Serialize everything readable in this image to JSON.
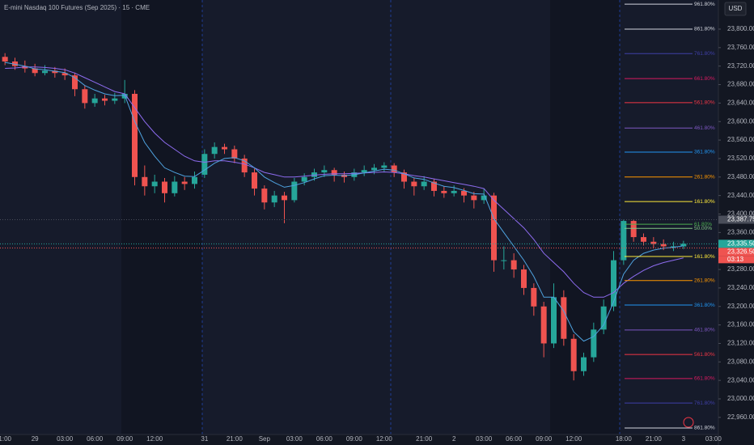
{
  "chart_data": {
    "type": "candlestick",
    "title": "E-mini Nasdaq 100 Futures (Sep 2025) · 15 · CME",
    "currency": "USD",
    "categories": [
      "1:00",
      null,
      null,
      "29",
      null,
      null,
      "03:00",
      null,
      null,
      "06:00",
      null,
      null,
      "09:00",
      null,
      null,
      "12:00",
      null,
      null,
      null,
      null,
      "31",
      null,
      null,
      "21:00",
      null,
      null,
      "Sep",
      null,
      null,
      "03:00",
      null,
      null,
      "06:00",
      null,
      null,
      "09:00",
      null,
      null,
      "12:00",
      null,
      null,
      null,
      "21:00",
      null,
      null,
      "2",
      null,
      null,
      "03:00",
      null,
      null,
      "06:00",
      null,
      null,
      "09:00",
      null,
      null,
      "12:00",
      null,
      null,
      null,
      null,
      "18:00",
      null,
      null,
      "21:00",
      null,
      null,
      "3",
      null,
      null,
      "03:00"
    ],
    "open": [
      23740,
      23730,
      23720,
      23715,
      23705,
      23710,
      23705,
      23700,
      23670,
      23640,
      23650,
      23645,
      23650,
      23660,
      23480,
      23460,
      23470,
      23445,
      23470,
      23465,
      23485,
      23530,
      23545,
      23540,
      23520,
      23490,
      23455,
      23425,
      23440,
      23430,
      23470,
      23480,
      23490,
      23495,
      23485,
      23480,
      23490,
      23495,
      23500,
      23505,
      23490,
      23470,
      23460,
      23470,
      23450,
      23445,
      23450,
      23440,
      23430,
      23440,
      23300,
      23300,
      23280,
      23240,
      23200,
      23120,
      23220,
      23130,
      23060,
      23090,
      23150,
      23200,
      23300,
      23385,
      23350,
      23340,
      23335,
      23330,
      23330,
      null,
      null,
      null
    ],
    "high": [
      23748,
      23738,
      23732,
      23725,
      23722,
      23718,
      23715,
      23706,
      23678,
      23660,
      23658,
      23662,
      23690,
      23668,
      23505,
      23485,
      23478,
      23482,
      23480,
      23492,
      23540,
      23555,
      23552,
      23548,
      23528,
      23498,
      23462,
      23450,
      23448,
      23478,
      23488,
      23498,
      23505,
      23500,
      23492,
      23498,
      23505,
      23508,
      23512,
      23510,
      23496,
      23478,
      23482,
      23476,
      23460,
      23462,
      23456,
      23448,
      23455,
      23446,
      23330,
      23315,
      23290,
      23250,
      23210,
      23250,
      23235,
      23140,
      23100,
      23165,
      23215,
      23320,
      23387.75,
      23388,
      23358,
      23350,
      23345,
      23340,
      23342,
      null,
      null,
      null
    ],
    "low": [
      23722,
      23712,
      23706,
      23698,
      23700,
      23695,
      23690,
      23655,
      23628,
      23632,
      23635,
      23638,
      23640,
      23462,
      23440,
      23445,
      23425,
      23438,
      23452,
      23455,
      23478,
      23520,
      23530,
      23510,
      23480,
      23440,
      23410,
      23415,
      23380,
      23425,
      23462,
      23472,
      23480,
      23470,
      23468,
      23472,
      23482,
      23486,
      23492,
      23480,
      23455,
      23440,
      23452,
      23438,
      23435,
      23438,
      23425,
      23412,
      23422,
      23275,
      23280,
      23262,
      23225,
      23180,
      23090,
      23110,
      23115,
      23040,
      23050,
      23080,
      23140,
      23190,
      23290,
      23340,
      23332,
      23326,
      23322,
      23320,
      23324,
      null,
      null,
      null
    ],
    "close": [
      23730,
      23720,
      23715,
      23705,
      23710,
      23705,
      23700,
      23670,
      23640,
      23650,
      23645,
      23650,
      23660,
      23480,
      23460,
      23470,
      23445,
      23470,
      23465,
      23480,
      23530,
      23545,
      23540,
      23520,
      23490,
      23455,
      23425,
      23440,
      23430,
      23470,
      23480,
      23490,
      23495,
      23485,
      23480,
      23490,
      23495,
      23500,
      23505,
      23490,
      23470,
      23460,
      23470,
      23450,
      23445,
      23450,
      23440,
      23430,
      23440,
      23300,
      23300,
      23280,
      23240,
      23200,
      23120,
      23220,
      23130,
      23060,
      23090,
      23150,
      23200,
      23300,
      23385,
      23350,
      23340,
      23335,
      23330,
      23330,
      23335.5,
      null,
      null,
      null
    ],
    "up_color": "#26a69a",
    "down_color": "#ef5350",
    "series": [
      {
        "color": "#8e6cf0",
        "values": [
          23715,
          23716,
          23718,
          23718,
          23717,
          23715,
          23712,
          23705,
          23695,
          23685,
          23675,
          23665,
          23660,
          23630,
          23600,
          23575,
          23555,
          23540,
          23525,
          23515,
          23512,
          23515,
          23515,
          23512,
          23508,
          23500,
          23490,
          23485,
          23480,
          23480,
          23482,
          23484,
          23486,
          23487,
          23487,
          23488,
          23489,
          23490,
          23491,
          23490,
          23487,
          23483,
          23480,
          23476,
          23472,
          23468,
          23464,
          23460,
          23455,
          23430,
          23410,
          23390,
          23370,
          23345,
          23315,
          23295,
          23275,
          23250,
          23230,
          23220,
          23220,
          23230,
          23250,
          23265,
          23278,
          23288,
          23295,
          23300,
          23305,
          null,
          null,
          null
        ]
      },
      {
        "color": "#4fa3e0",
        "values": [
          23728,
          23724,
          23720,
          23714,
          23712,
          23709,
          23706,
          23695,
          23678,
          23668,
          23660,
          23656,
          23657,
          23600,
          23555,
          23525,
          23500,
          23490,
          23482,
          23481,
          23495,
          23510,
          23520,
          23522,
          23515,
          23500,
          23480,
          23468,
          23458,
          23462,
          23468,
          23476,
          23483,
          23484,
          23483,
          23485,
          23489,
          23493,
          23497,
          23495,
          23487,
          23478,
          23475,
          23467,
          23460,
          23457,
          23451,
          23444,
          23443,
          23390,
          23360,
          23330,
          23300,
          23265,
          23220,
          23220,
          23190,
          23145,
          23125,
          23135,
          23160,
          23210,
          23270,
          23300,
          23315,
          23322,
          23326,
          23328,
          23331,
          null,
          null,
          null
        ]
      }
    ],
    "ylim": [
      22923,
      23863
    ],
    "yticks": [
      {
        "value": 22960,
        "label": "22,960.00"
      },
      {
        "value": 23000,
        "label": "23,000.00"
      },
      {
        "value": 23040,
        "label": "23,040.00"
      },
      {
        "value": 23080,
        "label": "23,080.00"
      },
      {
        "value": 23120,
        "label": "23,120.00"
      },
      {
        "value": 23160,
        "label": "23,160.00"
      },
      {
        "value": 23200,
        "label": "23,200.00"
      },
      {
        "value": 23240,
        "label": "23,240.00"
      },
      {
        "value": 23280,
        "label": "23,280.00"
      },
      {
        "value": 23320,
        "label": "23,320.00"
      },
      {
        "value": 23360,
        "label": "23,360.00"
      },
      {
        "value": 23400,
        "label": "23,400.00"
      },
      {
        "value": 23440,
        "label": "23,440.00"
      },
      {
        "value": 23480,
        "label": "23,480.00"
      },
      {
        "value": 23520,
        "label": "23,520.00"
      },
      {
        "value": 23560,
        "label": "23,560.00"
      },
      {
        "value": 23600,
        "label": "23,600.00"
      },
      {
        "value": 23640,
        "label": "23,640.00"
      },
      {
        "value": 23680,
        "label": "23,680.00"
      },
      {
        "value": 23720,
        "label": "23,720.00"
      },
      {
        "value": 23760,
        "label": "23,760.00"
      },
      {
        "value": 23800,
        "label": "23,800.00"
      }
    ],
    "fib_levels": [
      {
        "value": 23854,
        "label": "961.80%",
        "color": "#d1d4dc"
      },
      {
        "value": 23800,
        "label": "861.80%",
        "color": "#d1d4dc"
      },
      {
        "value": 23747,
        "label": "761.80%",
        "color": "#3f3fa8"
      },
      {
        "value": 23693,
        "label": "661.80%",
        "color": "#d81b60"
      },
      {
        "value": 23641,
        "label": "561.80%",
        "color": "#f23645"
      },
      {
        "value": 23586,
        "label": "461.80%",
        "color": "#7e57c2"
      },
      {
        "value": 23534,
        "label": "361.80%",
        "color": "#2196f3"
      },
      {
        "value": 23480,
        "label": "261.80%",
        "color": "#ff9800"
      },
      {
        "value": 23427,
        "label": "161.80%",
        "color": "#ffeb3b"
      },
      {
        "value": 23378,
        "label": "61.80%",
        "color": "#4caf50"
      },
      {
        "value": 23369,
        "label": "50.00%",
        "color": "#81c784"
      },
      {
        "value": 23308,
        "label": "161.80%",
        "color": "#ffeb3b"
      },
      {
        "value": 23256,
        "label": "261.80%",
        "color": "#ff9800"
      },
      {
        "value": 23203,
        "label": "361.80%",
        "color": "#2196f3"
      },
      {
        "value": 23149,
        "label": "461.80%",
        "color": "#7e57c2"
      },
      {
        "value": 23096,
        "label": "561.80%",
        "color": "#f23645"
      },
      {
        "value": 23044,
        "label": "661.80%",
        "color": "#d81b60"
      },
      {
        "value": 22991,
        "label": "761.80%",
        "color": "#3f3fa8"
      },
      {
        "value": 22937,
        "label": "861.80%",
        "color": "#d1d4dc"
      }
    ],
    "price_labels": [
      {
        "value": 23387.75,
        "label": "23,387.75",
        "color": "#4a4e5a"
      },
      {
        "value": 23335.5,
        "label": "23,335.50",
        "color": "#26a69a"
      },
      {
        "value": 23326.5,
        "label": "23,326.50",
        "color": "#ef5350"
      }
    ],
    "countdown": "03:13"
  }
}
